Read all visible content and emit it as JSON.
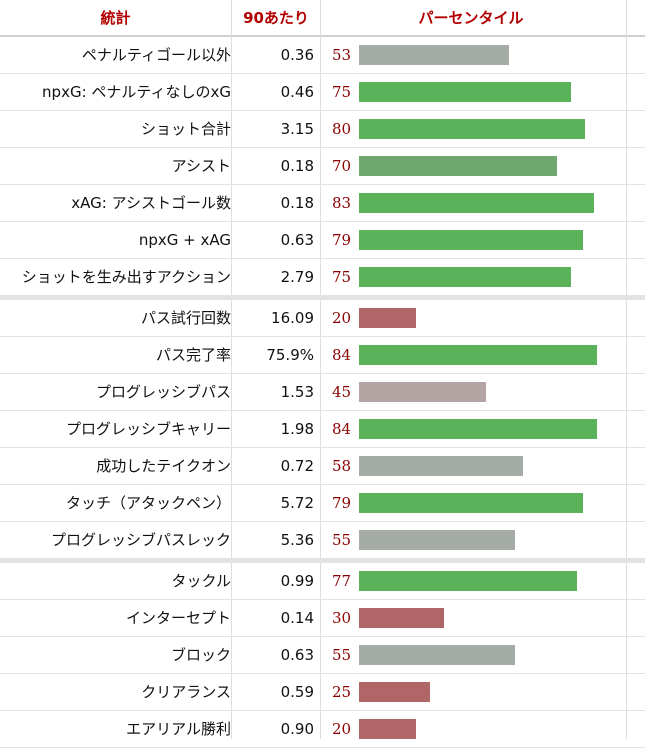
{
  "header": {
    "stat": "統計",
    "per90": "90あたり",
    "percentile": "パーセンタイル"
  },
  "colors": {
    "header_text": "#b20000",
    "percentile_text": "#8b0000",
    "bar_high": "#5ab25a",
    "bar_mid_high": "#6fa86f",
    "bar_mid": "#a5aba5",
    "bar_mid_low": "#b4a4a4",
    "bar_low": "#b06666"
  },
  "chart_data": {
    "type": "bar",
    "orientation": "horizontal",
    "xlim": [
      0,
      100
    ],
    "columns": [
      "統計",
      "90あたり",
      "パーセンタイル"
    ],
    "groups": [
      {
        "rows": [
          {
            "stat": "ペナルティゴール以外",
            "per90": "0.36",
            "percentile": 53
          },
          {
            "stat": "npxG: ペナルティなしのxG",
            "per90": "0.46",
            "percentile": 75
          },
          {
            "stat": "ショット合計",
            "per90": "3.15",
            "percentile": 80
          },
          {
            "stat": "アシスト",
            "per90": "0.18",
            "percentile": 70
          },
          {
            "stat": "xAG: アシストゴール数",
            "per90": "0.18",
            "percentile": 83
          },
          {
            "stat": "npxG + xAG",
            "per90": "0.63",
            "percentile": 79
          },
          {
            "stat": "ショットを生み出すアクション",
            "per90": "2.79",
            "percentile": 75
          }
        ]
      },
      {
        "rows": [
          {
            "stat": "パス試行回数",
            "per90": "16.09",
            "percentile": 20
          },
          {
            "stat": "パス完了率",
            "per90": "75.9%",
            "percentile": 84
          },
          {
            "stat": "プログレッシブパス",
            "per90": "1.53",
            "percentile": 45
          },
          {
            "stat": "プログレッシブキャリー",
            "per90": "1.98",
            "percentile": 84
          },
          {
            "stat": "成功したテイクオン",
            "per90": "0.72",
            "percentile": 58
          },
          {
            "stat": "タッチ（アタックペン）",
            "per90": "5.72",
            "percentile": 79
          },
          {
            "stat": "プログレッシブパスレック",
            "per90": "5.36",
            "percentile": 55
          }
        ]
      },
      {
        "rows": [
          {
            "stat": "タックル",
            "per90": "0.99",
            "percentile": 77
          },
          {
            "stat": "インターセプト",
            "per90": "0.14",
            "percentile": 30
          },
          {
            "stat": "ブロック",
            "per90": "0.63",
            "percentile": 55
          },
          {
            "stat": "クリアランス",
            "per90": "0.59",
            "percentile": 25
          },
          {
            "stat": "エアリアル勝利",
            "per90": "0.90",
            "percentile": 20
          }
        ]
      }
    ]
  }
}
